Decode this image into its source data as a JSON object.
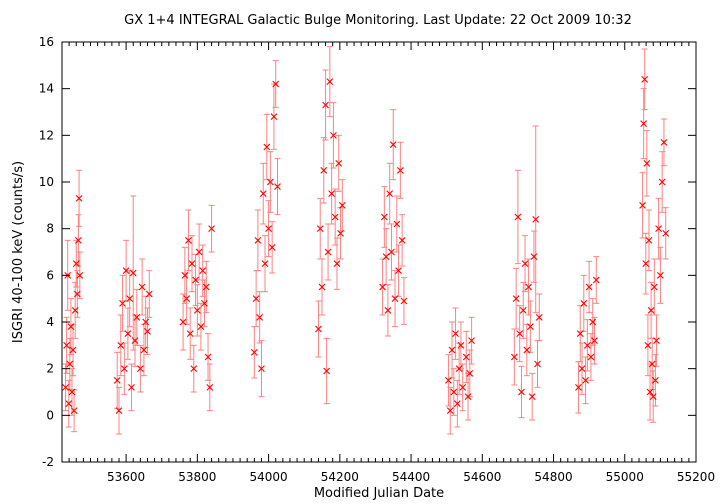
{
  "chart_data": {
    "type": "scatter",
    "title": "GX 1+4   INTEGRAL Galactic Bulge Monitoring.  Last Update: 22 Oct 2009 10:32",
    "xlabel": "Modified Julian Date",
    "ylabel": "ISGRI 40-100 keV (counts/s)",
    "xlim": [
      53420,
      55200
    ],
    "ylim": [
      -2,
      16
    ],
    "xticks": [
      53600,
      53800,
      54000,
      54200,
      54400,
      54600,
      54800,
      55000,
      55200
    ],
    "yticks": [
      -2,
      0,
      2,
      4,
      6,
      8,
      10,
      12,
      14,
      16
    ],
    "marker": "x with vertical error bars",
    "grid": false,
    "legend": "none",
    "colors": {
      "points": "#ff0000",
      "errorbars": "#ff8080",
      "axes": "#000000"
    },
    "series": [
      {
        "points": [
          {
            "x": 53430,
            "y": 1.2,
            "err": 1.0
          },
          {
            "x": 53433,
            "y": 3.0,
            "err": 1.2
          },
          {
            "x": 53436,
            "y": 6.0,
            "err": 1.5
          },
          {
            "x": 53439,
            "y": 0.5,
            "err": 1.0
          },
          {
            "x": 53442,
            "y": 2.2,
            "err": 1.1
          },
          {
            "x": 53445,
            "y": 3.8,
            "err": 1.2
          },
          {
            "x": 53448,
            "y": 1.0,
            "err": 1.0
          },
          {
            "x": 53451,
            "y": 2.8,
            "err": 1.1
          },
          {
            "x": 53454,
            "y": 0.2,
            "err": 0.9
          },
          {
            "x": 53457,
            "y": 4.5,
            "err": 1.2
          },
          {
            "x": 53460,
            "y": 6.5,
            "err": 1.0
          },
          {
            "x": 53463,
            "y": 5.2,
            "err": 1.0
          },
          {
            "x": 53466,
            "y": 7.5,
            "err": 1.1
          },
          {
            "x": 53468,
            "y": 9.3,
            "err": 1.2
          },
          {
            "x": 53470,
            "y": 6.0,
            "err": 1.0
          },
          {
            "x": 53575,
            "y": 1.5,
            "err": 1.2
          },
          {
            "x": 53580,
            "y": 0.2,
            "err": 1.0
          },
          {
            "x": 53585,
            "y": 3.0,
            "err": 1.3
          },
          {
            "x": 53590,
            "y": 4.8,
            "err": 1.2
          },
          {
            "x": 53595,
            "y": 2.0,
            "err": 1.1
          },
          {
            "x": 53600,
            "y": 6.2,
            "err": 1.3
          },
          {
            "x": 53605,
            "y": 3.5,
            "err": 1.1
          },
          {
            "x": 53610,
            "y": 5.0,
            "err": 1.2
          },
          {
            "x": 53615,
            "y": 1.2,
            "err": 1.0
          },
          {
            "x": 53620,
            "y": 6.1,
            "err": 3.3
          },
          {
            "x": 53625,
            "y": 3.2,
            "err": 1.1
          },
          {
            "x": 53630,
            "y": 4.2,
            "err": 1.2
          },
          {
            "x": 53640,
            "y": 2.0,
            "err": 1.0
          },
          {
            "x": 53645,
            "y": 5.5,
            "err": 1.2
          },
          {
            "x": 53650,
            "y": 2.8,
            "err": 1.1
          },
          {
            "x": 53655,
            "y": 4.0,
            "err": 1.1
          },
          {
            "x": 53660,
            "y": 3.6,
            "err": 1.0
          },
          {
            "x": 53665,
            "y": 5.2,
            "err": 1.0
          },
          {
            "x": 53760,
            "y": 4.0,
            "err": 1.2
          },
          {
            "x": 53765,
            "y": 6.0,
            "err": 1.2
          },
          {
            "x": 53770,
            "y": 5.0,
            "err": 1.1
          },
          {
            "x": 53775,
            "y": 7.5,
            "err": 1.3
          },
          {
            "x": 53780,
            "y": 3.5,
            "err": 1.1
          },
          {
            "x": 53785,
            "y": 6.5,
            "err": 1.2
          },
          {
            "x": 53790,
            "y": 2.0,
            "err": 1.0
          },
          {
            "x": 53795,
            "y": 5.8,
            "err": 1.1
          },
          {
            "x": 53800,
            "y": 4.5,
            "err": 1.1
          },
          {
            "x": 53805,
            "y": 7.0,
            "err": 1.2
          },
          {
            "x": 53810,
            "y": 3.8,
            "err": 1.0
          },
          {
            "x": 53815,
            "y": 6.2,
            "err": 1.1
          },
          {
            "x": 53820,
            "y": 4.8,
            "err": 1.0
          },
          {
            "x": 53825,
            "y": 5.5,
            "err": 1.1
          },
          {
            "x": 53830,
            "y": 2.5,
            "err": 1.0
          },
          {
            "x": 53835,
            "y": 1.2,
            "err": 1.0
          },
          {
            "x": 53840,
            "y": 8.0,
            "err": 1.0
          },
          {
            "x": 53960,
            "y": 2.7,
            "err": 1.1
          },
          {
            "x": 53965,
            "y": 5.0,
            "err": 1.2
          },
          {
            "x": 53970,
            "y": 7.5,
            "err": 1.3
          },
          {
            "x": 53975,
            "y": 4.2,
            "err": 1.1
          },
          {
            "x": 53980,
            "y": 2.0,
            "err": 1.2
          },
          {
            "x": 53985,
            "y": 9.5,
            "err": 1.3
          },
          {
            "x": 53990,
            "y": 6.5,
            "err": 1.2
          },
          {
            "x": 53995,
            "y": 11.5,
            "err": 1.4
          },
          {
            "x": 54000,
            "y": 8.0,
            "err": 1.2
          },
          {
            "x": 54005,
            "y": 10.0,
            "err": 1.3
          },
          {
            "x": 54010,
            "y": 7.2,
            "err": 1.1
          },
          {
            "x": 54015,
            "y": 12.8,
            "err": 1.4
          },
          {
            "x": 54020,
            "y": 14.2,
            "err": 1.0
          },
          {
            "x": 54025,
            "y": 9.8,
            "err": 1.2
          },
          {
            "x": 54140,
            "y": 3.7,
            "err": 1.2
          },
          {
            "x": 54145,
            "y": 8.0,
            "err": 1.3
          },
          {
            "x": 54150,
            "y": 5.5,
            "err": 1.2
          },
          {
            "x": 54155,
            "y": 10.5,
            "err": 1.4
          },
          {
            "x": 54160,
            "y": 13.3,
            "err": 1.5
          },
          {
            "x": 54163,
            "y": 1.9,
            "err": 1.4
          },
          {
            "x": 54167,
            "y": 7.0,
            "err": 1.2
          },
          {
            "x": 54172,
            "y": 14.3,
            "err": 1.5
          },
          {
            "x": 54177,
            "y": 9.5,
            "err": 1.3
          },
          {
            "x": 54182,
            "y": 12.0,
            "err": 1.4
          },
          {
            "x": 54187,
            "y": 8.5,
            "err": 1.2
          },
          {
            "x": 54192,
            "y": 6.5,
            "err": 1.1
          },
          {
            "x": 54197,
            "y": 10.8,
            "err": 1.2
          },
          {
            "x": 54202,
            "y": 7.8,
            "err": 1.1
          },
          {
            "x": 54207,
            "y": 9.0,
            "err": 1.1
          },
          {
            "x": 54320,
            "y": 5.5,
            "err": 1.2
          },
          {
            "x": 54325,
            "y": 8.5,
            "err": 1.3
          },
          {
            "x": 54330,
            "y": 6.8,
            "err": 1.2
          },
          {
            "x": 54335,
            "y": 4.5,
            "err": 1.1
          },
          {
            "x": 54340,
            "y": 9.5,
            "err": 1.3
          },
          {
            "x": 54345,
            "y": 7.0,
            "err": 1.2
          },
          {
            "x": 54350,
            "y": 11.6,
            "err": 1.5
          },
          {
            "x": 54355,
            "y": 5.0,
            "err": 1.2
          },
          {
            "x": 54360,
            "y": 8.2,
            "err": 1.2
          },
          {
            "x": 54365,
            "y": 6.2,
            "err": 1.1
          },
          {
            "x": 54370,
            "y": 10.5,
            "err": 1.2
          },
          {
            "x": 54375,
            "y": 7.5,
            "err": 1.1
          },
          {
            "x": 54380,
            "y": 4.9,
            "err": 1.0
          },
          {
            "x": 54505,
            "y": 1.5,
            "err": 1.1
          },
          {
            "x": 54510,
            "y": 0.2,
            "err": 1.0
          },
          {
            "x": 54515,
            "y": 2.8,
            "err": 1.2
          },
          {
            "x": 54520,
            "y": 1.0,
            "err": 1.0
          },
          {
            "x": 54525,
            "y": 3.5,
            "err": 1.1
          },
          {
            "x": 54530,
            "y": 0.5,
            "err": 1.0
          },
          {
            "x": 54535,
            "y": 2.0,
            "err": 1.1
          },
          {
            "x": 54540,
            "y": 3.0,
            "err": 1.0
          },
          {
            "x": 54545,
            "y": 1.2,
            "err": 1.0
          },
          {
            "x": 54555,
            "y": 2.5,
            "err": 1.1
          },
          {
            "x": 54560,
            "y": 0.8,
            "err": 1.0
          },
          {
            "x": 54565,
            "y": 1.8,
            "err": 1.0
          },
          {
            "x": 54570,
            "y": 3.2,
            "err": 1.0
          },
          {
            "x": 54690,
            "y": 2.5,
            "err": 1.2
          },
          {
            "x": 54695,
            "y": 5.0,
            "err": 1.3
          },
          {
            "x": 54700,
            "y": 8.5,
            "err": 2.0
          },
          {
            "x": 54705,
            "y": 3.5,
            "err": 1.2
          },
          {
            "x": 54710,
            "y": 1.0,
            "err": 1.1
          },
          {
            "x": 54715,
            "y": 4.5,
            "err": 1.2
          },
          {
            "x": 54720,
            "y": 6.5,
            "err": 1.2
          },
          {
            "x": 54725,
            "y": 2.8,
            "err": 1.1
          },
          {
            "x": 54730,
            "y": 5.5,
            "err": 1.2
          },
          {
            "x": 54735,
            "y": 3.8,
            "err": 1.1
          },
          {
            "x": 54740,
            "y": 0.8,
            "err": 1.0
          },
          {
            "x": 54745,
            "y": 6.8,
            "err": 1.1
          },
          {
            "x": 54750,
            "y": 8.4,
            "err": 4.0
          },
          {
            "x": 54755,
            "y": 2.2,
            "err": 1.0
          },
          {
            "x": 54760,
            "y": 4.2,
            "err": 1.0
          },
          {
            "x": 54870,
            "y": 1.2,
            "err": 1.1
          },
          {
            "x": 54875,
            "y": 3.5,
            "err": 1.2
          },
          {
            "x": 54880,
            "y": 2.0,
            "err": 1.1
          },
          {
            "x": 54885,
            "y": 4.8,
            "err": 1.2
          },
          {
            "x": 54890,
            "y": 1.5,
            "err": 1.0
          },
          {
            "x": 54895,
            "y": 3.0,
            "err": 1.1
          },
          {
            "x": 54900,
            "y": 5.5,
            "err": 1.1
          },
          {
            "x": 54905,
            "y": 2.5,
            "err": 1.0
          },
          {
            "x": 54910,
            "y": 4.0,
            "err": 1.0
          },
          {
            "x": 54915,
            "y": 3.2,
            "err": 1.0
          },
          {
            "x": 54920,
            "y": 5.8,
            "err": 1.0
          },
          {
            "x": 55050,
            "y": 9.0,
            "err": 1.4
          },
          {
            "x": 55053,
            "y": 12.5,
            "err": 1.5
          },
          {
            "x": 55056,
            "y": 14.4,
            "err": 1.3
          },
          {
            "x": 55059,
            "y": 6.5,
            "err": 1.3
          },
          {
            "x": 55062,
            "y": 10.8,
            "err": 1.4
          },
          {
            "x": 55065,
            "y": 3.0,
            "err": 1.3
          },
          {
            "x": 55068,
            "y": 7.5,
            "err": 1.3
          },
          {
            "x": 55071,
            "y": 1.0,
            "err": 1.2
          },
          {
            "x": 55074,
            "y": 4.5,
            "err": 1.2
          },
          {
            "x": 55077,
            "y": 2.2,
            "err": 1.1
          },
          {
            "x": 55080,
            "y": 0.8,
            "err": 1.1
          },
          {
            "x": 55083,
            "y": 5.5,
            "err": 1.2
          },
          {
            "x": 55086,
            "y": 1.5,
            "err": 1.1
          },
          {
            "x": 55089,
            "y": 3.2,
            "err": 1.1
          },
          {
            "x": 55095,
            "y": 8.0,
            "err": 1.3
          },
          {
            "x": 55100,
            "y": 6.0,
            "err": 1.2
          },
          {
            "x": 55105,
            "y": 10.0,
            "err": 1.3
          },
          {
            "x": 55110,
            "y": 11.7,
            "err": 1.0
          },
          {
            "x": 55115,
            "y": 7.8,
            "err": 1.1
          }
        ]
      }
    ]
  }
}
